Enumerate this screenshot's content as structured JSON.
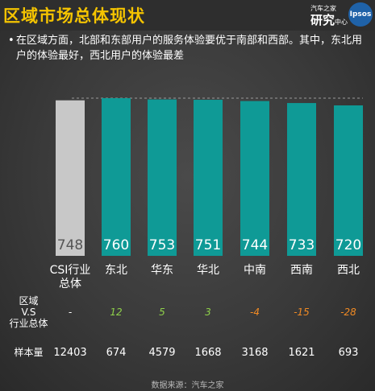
{
  "header": {
    "title": "区域市场总体现状",
    "logo_line1": "汽车之家",
    "logo_line2": "研究",
    "logo_line2_sub": "中心",
    "logo_badge": "Ipsos"
  },
  "summary": {
    "bullet": "•",
    "text": "在区域方面，北部和东部用户的服务体验要优于南部和西部。其中，东北用户的体验最好，西北用户的体验最差"
  },
  "chart_data": {
    "type": "bar",
    "categories": [
      "CSI行业总体",
      "东北",
      "华东",
      "华北",
      "中南",
      "西南",
      "西北"
    ],
    "values": [
      748,
      760,
      753,
      751,
      744,
      733,
      720
    ],
    "data_labels": [
      "748",
      "760",
      "753",
      "751",
      "744",
      "733",
      "720"
    ],
    "colors": {
      "benchmark": "#c8c8c8",
      "region": "#0f9a96",
      "reference_line": "#9a9a9a"
    },
    "reference_line": 760,
    "legend": "none",
    "grid": false
  },
  "table": {
    "row1_label": "区域\nV.S\n行业总体",
    "row2_label": "样本量",
    "diffs": [
      "-",
      "12",
      "5",
      "3",
      "-4",
      "-15",
      "-28"
    ],
    "diff_colors": [
      "#ffffff",
      "#8fd14a",
      "#8fd14a",
      "#8fd14a",
      "#f08a24",
      "#f08a24",
      "#f08a24"
    ],
    "samples": [
      "12403",
      "674",
      "4579",
      "1668",
      "3168",
      "1621",
      "693"
    ]
  },
  "source": "数据来源：汽车之家"
}
